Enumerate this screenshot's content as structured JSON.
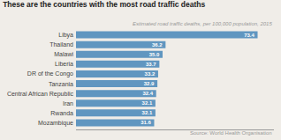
{
  "chart_data": {
    "type": "bar",
    "orientation": "horizontal",
    "title": "These are the countries with the most road traffic deaths",
    "subtitle": "Estimated road traffic deaths, per 100,000 population, 2015",
    "source": "Source: World Health Organisation",
    "categories": [
      "Mozambique",
      "Rwanda",
      "Iran",
      "Central African Republic",
      "Tanzania",
      "DR of the Congo",
      "Liberia",
      "Malawi",
      "Thailand",
      "Libya"
    ],
    "values": [
      31.6,
      32.1,
      32.1,
      32.4,
      32.9,
      33.2,
      33.7,
      35.0,
      36.2,
      73.4
    ],
    "value_labels": [
      "31.6",
      "32.1",
      "32.1",
      "32.4",
      "32.9",
      "33.2",
      "33.7",
      "35.0",
      "36.2",
      "73.4"
    ],
    "data_labels": true,
    "color": "#6096c0",
    "xlim": [
      0,
      80
    ],
    "tick_labels": "y",
    "grid": false
  }
}
